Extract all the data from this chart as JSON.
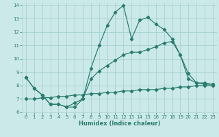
{
  "xlabel": "Humidex (Indice chaleur)",
  "xlim": [
    -0.5,
    23.5
  ],
  "ylim": [
    6,
    14.2
  ],
  "yticks": [
    6,
    7,
    8,
    9,
    10,
    11,
    12,
    13,
    14
  ],
  "xticks": [
    0,
    1,
    2,
    3,
    4,
    5,
    6,
    7,
    8,
    9,
    10,
    11,
    12,
    13,
    14,
    15,
    16,
    17,
    18,
    19,
    20,
    21,
    22,
    23
  ],
  "background_color": "#cce9e9",
  "grid_color": "#aad4d4",
  "line_color": "#2a7d6e",
  "line1_x": [
    0,
    1,
    2,
    3,
    4,
    5,
    6,
    7,
    8,
    9,
    10,
    11,
    12,
    13,
    14,
    15,
    16,
    17,
    18,
    19,
    20,
    21,
    22,
    23
  ],
  "line1_y": [
    8.6,
    7.8,
    7.3,
    6.6,
    6.6,
    6.4,
    6.4,
    7.0,
    9.3,
    11.0,
    12.5,
    13.5,
    14.0,
    11.5,
    12.9,
    13.1,
    12.6,
    12.2,
    11.5,
    10.3,
    8.5,
    8.2,
    8.1,
    8.1
  ],
  "line2_x": [
    0,
    1,
    2,
    3,
    4,
    5,
    6,
    7,
    8,
    9,
    10,
    11,
    12,
    13,
    14,
    15,
    16,
    17,
    18,
    19,
    20,
    21,
    22,
    23
  ],
  "line2_y": [
    8.6,
    7.8,
    7.3,
    6.6,
    6.6,
    6.4,
    6.7,
    7.0,
    8.5,
    9.1,
    9.5,
    9.9,
    10.3,
    10.5,
    10.5,
    10.7,
    10.9,
    11.2,
    11.3,
    10.3,
    8.9,
    8.2,
    8.2,
    8.1
  ],
  "line3_x": [
    0,
    1,
    2,
    3,
    4,
    5,
    6,
    7,
    8,
    9,
    10,
    11,
    12,
    13,
    14,
    15,
    16,
    17,
    18,
    19,
    20,
    21,
    22,
    23
  ],
  "line3_y": [
    7.0,
    7.0,
    7.1,
    7.1,
    7.2,
    7.2,
    7.3,
    7.3,
    7.4,
    7.4,
    7.5,
    7.5,
    7.6,
    7.6,
    7.7,
    7.7,
    7.7,
    7.8,
    7.8,
    7.9,
    7.9,
    8.0,
    8.0,
    8.0
  ]
}
